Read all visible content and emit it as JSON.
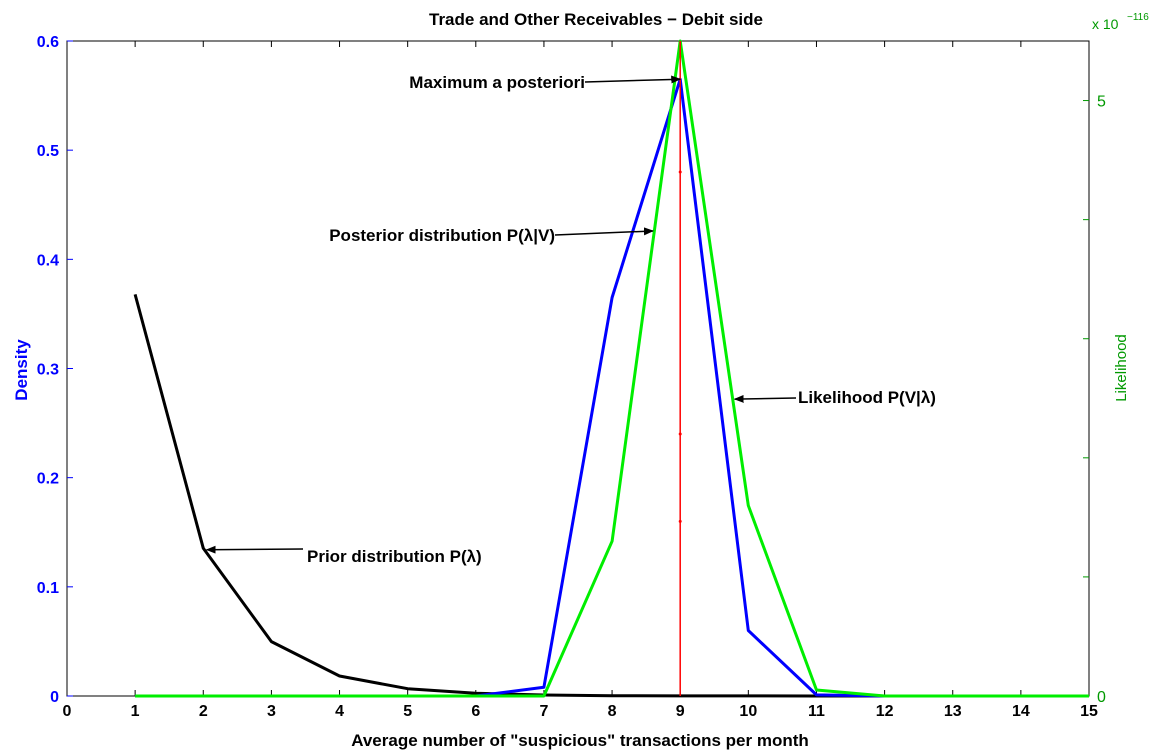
{
  "chart_data": {
    "type": "line",
    "title": "Trade and Other Receivables − Debit side",
    "xlabel": "Average number of \"suspicious\" transactions per month",
    "ylabel_left": "Density",
    "ylabel_right": "Likelihood",
    "right_axis_multiplier": "x 10",
    "right_axis_exponent": "−116",
    "xlim": [
      0,
      15
    ],
    "ylim_left": [
      0,
      0.6
    ],
    "ylim_right": [
      0,
      5.5
    ],
    "x_ticks": [
      0,
      1,
      2,
      3,
      4,
      5,
      6,
      7,
      8,
      9,
      10,
      11,
      12,
      13,
      14,
      15
    ],
    "y_left_ticks": [
      "0",
      "0.1",
      "0.2",
      "0.3",
      "0.4",
      "0.5",
      "0.6"
    ],
    "y_right_ticks": [
      "0",
      "5"
    ],
    "grid": false,
    "colors": {
      "axis_left": "#0000ff",
      "axis_right": "#009900",
      "prior": "#000000",
      "posterior": "#0000ff",
      "likelihood": "#00ee00",
      "map_line": "#ff0000"
    },
    "series": [
      {
        "name": "Prior distribution P(λ)",
        "axis": "left",
        "color": "#000000",
        "x": [
          1,
          2,
          3,
          4,
          5,
          6,
          7,
          8,
          9,
          10,
          11,
          12,
          13,
          14,
          15
        ],
        "y": [
          0.3679,
          0.1353,
          0.0498,
          0.0183,
          0.0067,
          0.0025,
          0.0009,
          0.0003,
          0.0001,
          5e-05,
          2e-05,
          0.0,
          0.0,
          0.0,
          0.0
        ]
      },
      {
        "name": "Posterior distribution P(λ|V)",
        "axis": "left",
        "color": "#0000ff",
        "x": [
          1,
          2,
          3,
          4,
          5,
          6,
          7,
          8,
          9,
          10,
          11,
          12,
          13,
          14,
          15
        ],
        "y": [
          0,
          0,
          0,
          0,
          0,
          0,
          0.008,
          0.365,
          0.565,
          0.06,
          0.001,
          0,
          0,
          0,
          0
        ]
      },
      {
        "name": "Likelihood P(V|λ)",
        "axis": "right",
        "color": "#00ee00",
        "x": [
          1,
          2,
          3,
          4,
          5,
          6,
          7,
          8,
          9,
          10,
          11,
          12,
          13,
          14,
          15
        ],
        "y": [
          0,
          0,
          0,
          0,
          0,
          0,
          0,
          1.3,
          5.5,
          1.6,
          0.05,
          0,
          0,
          0,
          0
        ]
      }
    ],
    "map_x": 9,
    "annotations": [
      {
        "text": "Maximum a posteriori",
        "target_x": 9,
        "target_y": 0.565
      },
      {
        "text": "Posterior distribution P(λ|V)",
        "target_x": 8.6,
        "target_y": 0.426
      },
      {
        "text": "Likelihood P(V|λ)",
        "target_x": 9.8,
        "target_y": 0.272
      },
      {
        "text": "Prior distribution P(λ)",
        "target_x": 2.05,
        "target_y": 0.134
      }
    ]
  }
}
